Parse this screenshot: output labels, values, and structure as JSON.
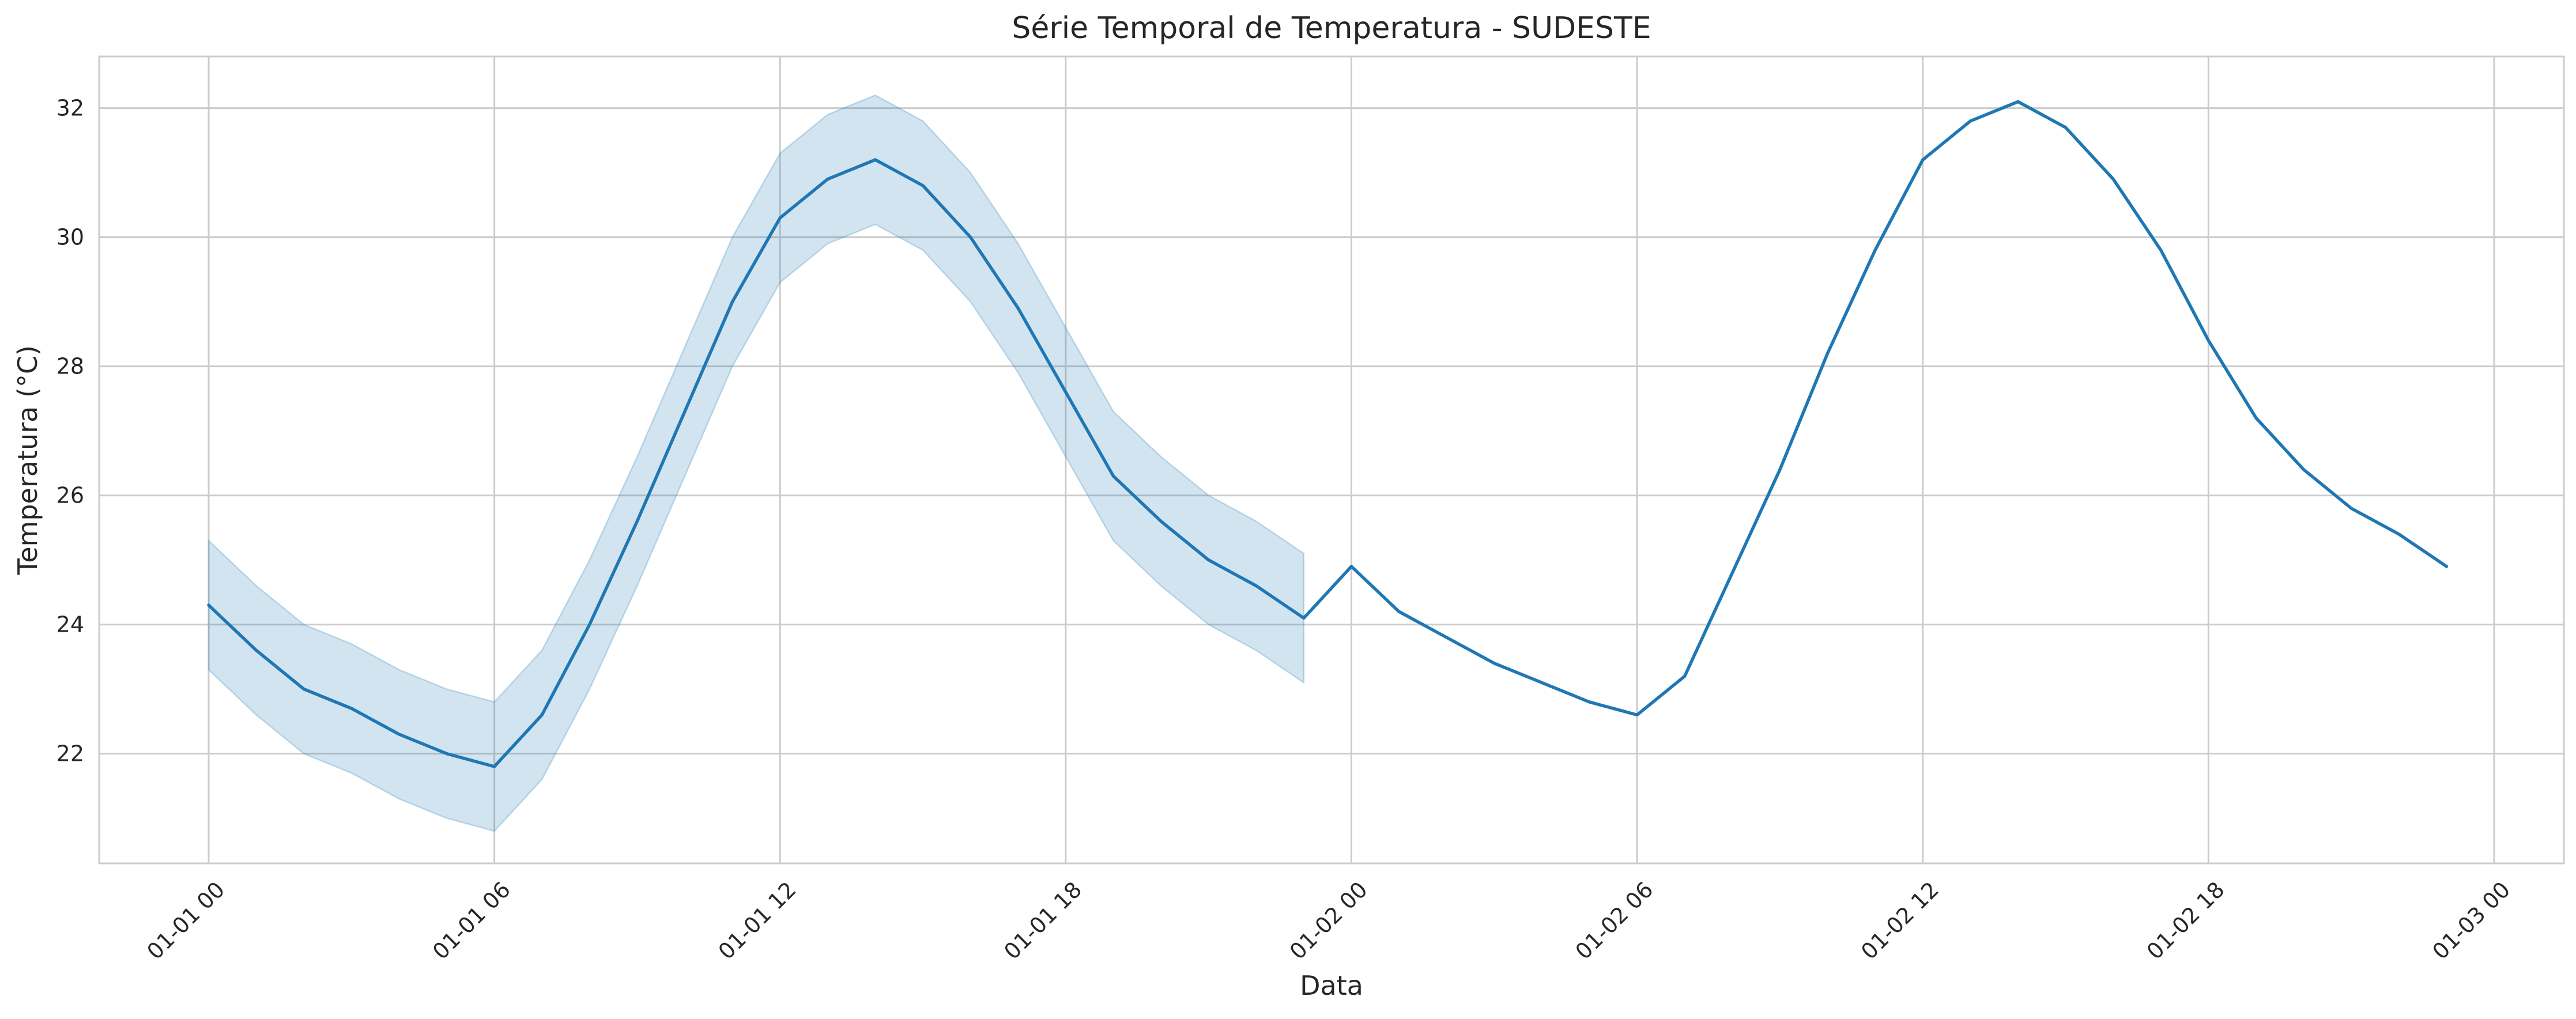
{
  "chart_data": {
    "type": "line",
    "title": "Série Temporal de Temperatura - SUDESTE",
    "xlabel": "Data",
    "ylabel": "Temperatura (°C)",
    "x_unit": "hour",
    "xlim": [
      "01-01 00",
      "01-03 00"
    ],
    "ylim": [
      20.3,
      32.8
    ],
    "yticks": [
      22,
      24,
      26,
      28,
      30,
      32
    ],
    "xticks": [
      "01-01 00",
      "01-01 06",
      "01-01 12",
      "01-01 18",
      "01-02 00",
      "01-02 06",
      "01-02 12",
      "01-02 18",
      "01-03 00"
    ],
    "grid": true,
    "series": [
      {
        "color": "#1f77b4",
        "x": [
          "01-01 00",
          "01-01 01",
          "01-01 02",
          "01-01 03",
          "01-01 04",
          "01-01 05",
          "01-01 06",
          "01-01 07",
          "01-01 08",
          "01-01 09",
          "01-01 10",
          "01-01 11",
          "01-01 12",
          "01-01 13",
          "01-01 14",
          "01-01 15",
          "01-01 16",
          "01-01 17",
          "01-01 18",
          "01-01 19",
          "01-01 20",
          "01-01 21",
          "01-01 22",
          "01-01 23",
          "01-02 00",
          "01-02 01",
          "01-02 02",
          "01-02 03",
          "01-02 04",
          "01-02 05",
          "01-02 06",
          "01-02 07",
          "01-02 08",
          "01-02 09",
          "01-02 10",
          "01-02 11",
          "01-02 12",
          "01-02 13",
          "01-02 14",
          "01-02 15",
          "01-02 16",
          "01-02 17",
          "01-02 18",
          "01-02 19",
          "01-02 20",
          "01-02 21",
          "01-02 22",
          "01-02 23"
        ],
        "values": [
          24.3,
          23.6,
          23.0,
          22.7,
          22.3,
          22.0,
          21.8,
          22.6,
          24.0,
          25.6,
          27.3,
          29.0,
          30.3,
          30.9,
          31.2,
          30.8,
          30.0,
          28.9,
          27.6,
          26.3,
          25.6,
          25.0,
          24.6,
          24.1,
          24.9,
          24.2,
          23.8,
          23.4,
          23.1,
          22.8,
          22.6,
          23.2,
          24.8,
          26.4,
          28.2,
          29.8,
          31.2,
          31.8,
          32.1,
          31.7,
          30.9,
          29.8,
          28.4,
          27.2,
          26.4,
          25.8,
          25.4,
          24.9
        ],
        "ci_x": [
          "01-01 00",
          "01-01 01",
          "01-01 02",
          "01-01 03",
          "01-01 04",
          "01-01 05",
          "01-01 06",
          "01-01 07",
          "01-01 08",
          "01-01 09",
          "01-01 10",
          "01-01 11",
          "01-01 12",
          "01-01 13",
          "01-01 14",
          "01-01 15",
          "01-01 16",
          "01-01 17",
          "01-01 18",
          "01-01 19",
          "01-01 20",
          "01-01 21",
          "01-01 22",
          "01-01 23"
        ],
        "ci_lower": [
          23.3,
          22.6,
          22.0,
          21.7,
          21.3,
          21.0,
          20.8,
          21.6,
          23.0,
          24.6,
          26.3,
          28.0,
          29.3,
          29.9,
          30.2,
          29.8,
          29.0,
          27.9,
          26.6,
          25.3,
          24.6,
          24.0,
          23.6,
          23.1
        ],
        "ci_upper": [
          25.3,
          24.6,
          24.0,
          23.7,
          23.3,
          23.0,
          22.8,
          23.6,
          25.0,
          26.6,
          28.3,
          30.0,
          31.3,
          31.9,
          32.2,
          31.8,
          31.0,
          29.9,
          28.6,
          27.3,
          26.6,
          26.0,
          25.6,
          25.1
        ]
      }
    ]
  }
}
